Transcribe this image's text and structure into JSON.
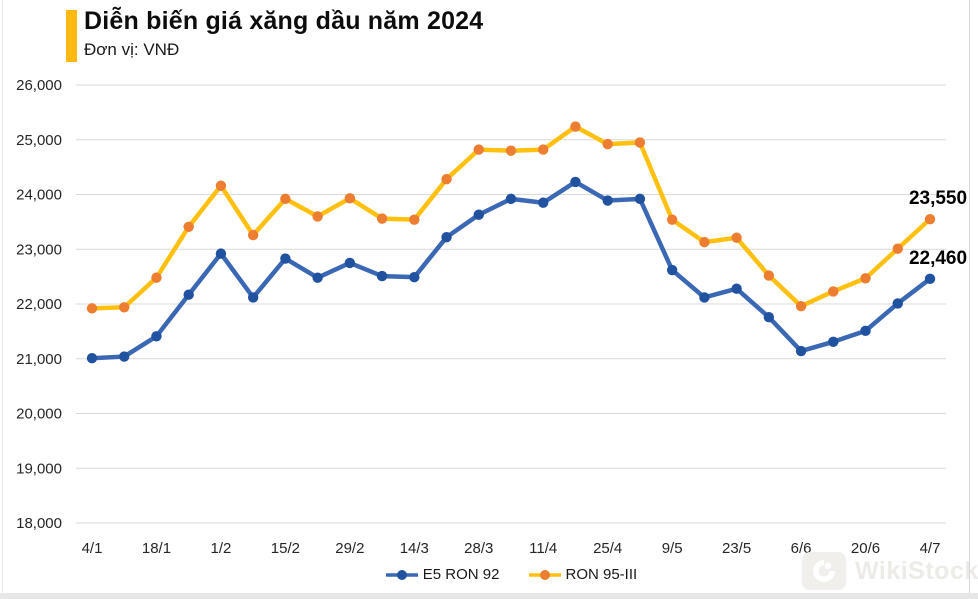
{
  "header": {
    "title": "Diễn biến giá xăng dầu năm 2024",
    "subtitle": "Đơn vị: VNĐ",
    "accent_color": "#FCB813"
  },
  "chart_data": {
    "type": "line",
    "x": [
      "4/1",
      "11/1",
      "18/1",
      "25/1",
      "1/2",
      "8/2",
      "15/2",
      "22/2",
      "29/2",
      "7/3",
      "14/3",
      "21/3",
      "28/3",
      "4/4",
      "11/4",
      "17/4",
      "25/4",
      "2/5",
      "9/5",
      "16/5",
      "23/5",
      "30/5",
      "6/6",
      "13/6",
      "20/6",
      "27/6",
      "4/7"
    ],
    "x_tick_labels": [
      "4/1",
      "18/1",
      "1/2",
      "15/2",
      "29/2",
      "14/3",
      "28/3",
      "11/4",
      "25/4",
      "9/5",
      "23/5",
      "6/6",
      "20/6",
      "4/7"
    ],
    "x_tick_every": 2,
    "series": [
      {
        "id": "e5-ron-92",
        "name": "E5 RON 92",
        "line_color": "#3A68B4",
        "marker_color": "#2152A0",
        "values": [
          21010,
          21040,
          21410,
          22170,
          22920,
          22120,
          22830,
          22480,
          22750,
          22510,
          22490,
          23220,
          23630,
          23920,
          23850,
          24230,
          23890,
          23920,
          22620,
          22120,
          22280,
          21760,
          21140,
          21310,
          21510,
          22010,
          22460
        ],
        "end_label": "22,460"
      },
      {
        "id": "ron-95-iii",
        "name": "RON 95-III",
        "line_color": "#FFC010",
        "marker_color": "#ED7D31",
        "values": [
          21920,
          21940,
          22480,
          23410,
          24160,
          23260,
          23920,
          23600,
          23930,
          23560,
          23540,
          24280,
          24820,
          24800,
          24820,
          25240,
          24920,
          24950,
          23540,
          23130,
          23210,
          22520,
          21960,
          22230,
          22470,
          23010,
          23550
        ],
        "end_label": "23,550"
      }
    ],
    "ylim": [
      18000,
      26000
    ],
    "y_tick_step": 1000,
    "y_tick_labels": [
      "26,000",
      "25,000",
      "24,000",
      "23,000",
      "22,000",
      "21,000",
      "20,000",
      "19,000",
      "18,000"
    ],
    "grid": true,
    "grid_color": "#D9D9D9",
    "legend_position": "bottom"
  },
  "footer": {
    "watermark": "WikiStock"
  }
}
